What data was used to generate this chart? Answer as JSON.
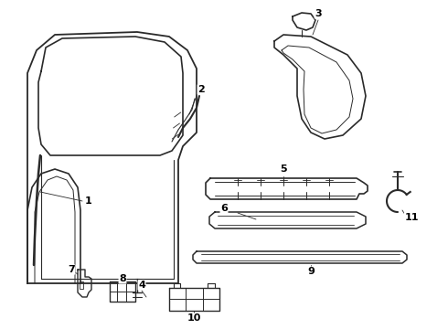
{
  "bg_color": "#ffffff",
  "line_color": "#2a2a2a",
  "label_color": "#000000",
  "figsize": [
    4.9,
    3.6
  ],
  "dpi": 100
}
